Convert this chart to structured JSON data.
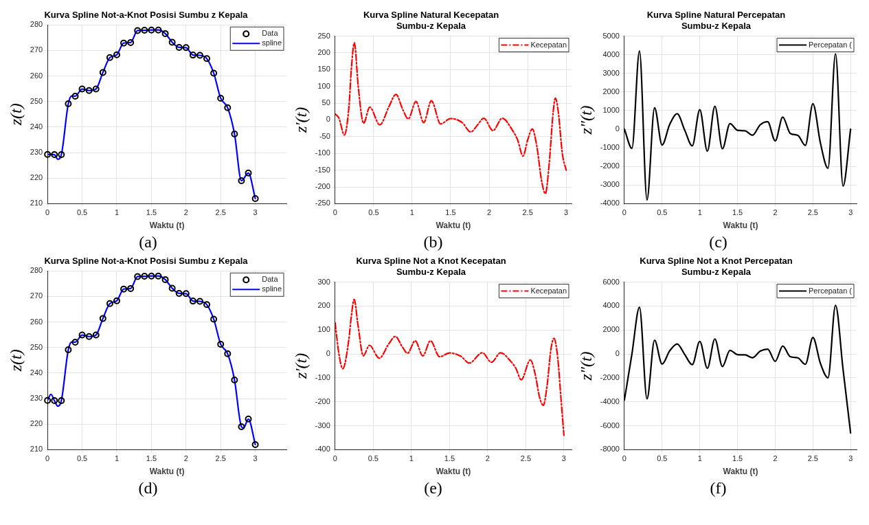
{
  "chart_data": [
    {
      "type": "line",
      "title": "Kurva Spline Not-a-Knot Posisi Sumbu z Kepala",
      "xlabel": "Waktu (t)",
      "ylabel": "z(t)",
      "annotations": [
        "(a)"
      ],
      "xlim": [
        0,
        3.45
      ],
      "xticks": [
        0,
        0.5,
        1,
        1.5,
        2,
        2.5,
        3
      ],
      "ylim": [
        210,
        280
      ],
      "yticks": [
        210,
        220,
        230,
        240,
        250,
        260,
        270,
        280
      ],
      "grid": true,
      "legend": "top right",
      "series": [
        {
          "name": "Data",
          "type": "scatter",
          "marker": "circle",
          "color": "#000000",
          "x": [
            0,
            0.1,
            0.2,
            0.3,
            0.4,
            0.5,
            0.6,
            0.7,
            0.8,
            0.9,
            1,
            1.1,
            1.2,
            1.3,
            1.4,
            1.5,
            1.6,
            1.7,
            1.8,
            1.9,
            2,
            2.1,
            2.2,
            2.3,
            2.4,
            2.5,
            2.6,
            2.7,
            2.8,
            2.9,
            3
          ],
          "values": [
            229.3,
            229.2,
            229.2,
            249.1,
            252.1,
            254.9,
            254.3,
            254.9,
            261.4,
            267.2,
            268.3,
            272.9,
            273.1,
            277.8,
            277.9,
            278.0,
            278.0,
            276.6,
            273.2,
            271.2,
            271.1,
            268.2,
            268.1,
            266.8,
            261.1,
            251.3,
            247.6,
            237.3,
            219.0,
            222.0,
            212.0
          ]
        },
        {
          "name": "spline",
          "type": "line",
          "color": "#0000ff",
          "x": [
            0,
            0.1,
            0.15,
            0.2,
            0.3,
            0.35,
            0.4,
            0.5,
            0.6,
            0.7,
            0.8,
            0.9,
            1,
            1.1,
            1.2,
            1.3,
            1.4,
            1.5,
            1.6,
            1.7,
            1.8,
            1.9,
            2,
            2.1,
            2.2,
            2.3,
            2.4,
            2.5,
            2.6,
            2.7,
            2.8,
            2.9,
            3
          ],
          "values": [
            229.3,
            229.2,
            227.4,
            229.2,
            249.1,
            252.2,
            252.1,
            254.9,
            254.3,
            254.9,
            261.4,
            267.2,
            268.3,
            272.9,
            273.1,
            277.8,
            277.9,
            278.0,
            278.0,
            276.6,
            273.2,
            271.2,
            271.1,
            268.2,
            268.1,
            266.8,
            261.1,
            251.3,
            247.6,
            237.3,
            219.0,
            222.0,
            212.0
          ]
        }
      ]
    },
    {
      "type": "line",
      "title": "Kurva Spline Natural Kecepatan\nSumbu-z Kepala",
      "xlabel": "Waktu (t)",
      "ylabel": "z′(t)",
      "annotations": [
        "(b)"
      ],
      "xlim": [
        0,
        3.07
      ],
      "xticks": [
        0,
        0.5,
        1,
        1.5,
        2,
        2.5,
        3
      ],
      "ylim": [
        -250,
        250
      ],
      "yticks": [
        -250,
        -200,
        -150,
        -100,
        -50,
        0,
        50,
        100,
        150,
        200,
        250
      ],
      "grid": true,
      "legend": "top right",
      "line_style": "dashed",
      "series": [
        {
          "name": "Kecepatan",
          "color": "#ff0000",
          "x": [
            0,
            0.05,
            0.12,
            0.18,
            0.21,
            0.25,
            0.3,
            0.37,
            0.45,
            0.58,
            0.7,
            0.79,
            0.88,
            0.95,
            1.05,
            1.15,
            1.25,
            1.37,
            1.5,
            1.65,
            1.76,
            1.85,
            1.93,
            2.05,
            2.17,
            2.3,
            2.37,
            2.44,
            2.5,
            2.56,
            2.62,
            2.68,
            2.73,
            2.78,
            2.83,
            2.86,
            2.9,
            2.95,
            3
          ],
          "values": [
            18,
            5,
            -45,
            40,
            150,
            230,
            100,
            -10,
            38,
            -15,
            40,
            76,
            30,
            3,
            55,
            -8,
            57,
            -12,
            4,
            -8,
            -36,
            -15,
            5,
            -32,
            5,
            -30,
            -60,
            -108,
            -60,
            -27,
            -80,
            -180,
            -220,
            -130,
            20,
            65,
            20,
            -100,
            -150
          ]
        }
      ]
    },
    {
      "type": "line",
      "title": "Kurva Spline Natural Percepatan\nSumbu-z Kepala",
      "xlabel": "Waktu (t)",
      "ylabel": "z″(t)",
      "annotations": [
        "(c)"
      ],
      "xlim": [
        0,
        3.08
      ],
      "xticks": [
        0,
        0.5,
        1,
        1.5,
        2,
        2.5,
        3
      ],
      "ylim": [
        -4000,
        5000
      ],
      "yticks": [
        -4000,
        -3000,
        -2000,
        -1000,
        0,
        1000,
        2000,
        3000,
        4000,
        5000
      ],
      "grid": true,
      "legend": "top right",
      "series": [
        {
          "name": "Percepatan (",
          "color": "#000000",
          "x": [
            0,
            0.1,
            0.2,
            0.3,
            0.4,
            0.5,
            0.6,
            0.7,
            0.8,
            0.9,
            1,
            1.1,
            1.2,
            1.3,
            1.4,
            1.5,
            1.6,
            1.7,
            1.8,
            1.9,
            2,
            2.1,
            2.2,
            2.3,
            2.4,
            2.5,
            2.6,
            2.7,
            2.8,
            2.9,
            3
          ],
          "values": [
            0,
            -1030,
            4200,
            -3800,
            1150,
            -850,
            250,
            830,
            -50,
            -900,
            1050,
            -1180,
            1230,
            -1050,
            300,
            -60,
            -90,
            -320,
            230,
            400,
            -630,
            650,
            -230,
            -330,
            -870,
            1370,
            -750,
            -2100,
            4050,
            -3050,
            0
          ]
        }
      ]
    },
    {
      "type": "line",
      "title": "Kurva Spline Not-a-Knot Posisi Sumbu z Kepala",
      "xlabel": "Waktu (t)",
      "ylabel": "z(t)",
      "annotations": [
        "(d)"
      ],
      "xlim": [
        0,
        3.45
      ],
      "xticks": [
        0,
        0.5,
        1,
        1.5,
        2,
        2.5,
        3
      ],
      "ylim": [
        210,
        280
      ],
      "yticks": [
        210,
        220,
        230,
        240,
        250,
        260,
        270,
        280
      ],
      "grid": true,
      "legend": "top right",
      "series": [
        {
          "name": "Data",
          "type": "scatter",
          "marker": "circle",
          "color": "#000000",
          "x": [
            0,
            0.1,
            0.2,
            0.3,
            0.4,
            0.5,
            0.6,
            0.7,
            0.8,
            0.9,
            1,
            1.1,
            1.2,
            1.3,
            1.4,
            1.5,
            1.6,
            1.7,
            1.8,
            1.9,
            2,
            2.1,
            2.2,
            2.3,
            2.4,
            2.5,
            2.6,
            2.7,
            2.8,
            2.9,
            3
          ],
          "values": [
            229.3,
            229.2,
            229.2,
            249.1,
            252.1,
            254.9,
            254.3,
            254.9,
            261.4,
            267.2,
            268.3,
            272.9,
            273.1,
            277.8,
            277.9,
            278.0,
            278.0,
            276.6,
            273.2,
            271.2,
            271.1,
            268.2,
            268.1,
            266.8,
            261.1,
            251.3,
            247.6,
            237.3,
            219.0,
            222.0,
            212.0
          ]
        },
        {
          "name": "spline",
          "type": "line",
          "color": "#0000ff",
          "x": [
            0,
            0.05,
            0.1,
            0.15,
            0.2,
            0.3,
            0.35,
            0.4,
            0.5,
            0.6,
            0.7,
            0.8,
            0.9,
            1,
            1.1,
            1.2,
            1.3,
            1.4,
            1.5,
            1.6,
            1.7,
            1.8,
            1.9,
            2,
            2.1,
            2.2,
            2.3,
            2.4,
            2.5,
            2.6,
            2.7,
            2.8,
            2.83,
            2.9,
            3
          ],
          "values": [
            229.3,
            231.7,
            229.2,
            227.0,
            229.2,
            249.1,
            252.2,
            252.1,
            254.9,
            254.3,
            254.9,
            261.4,
            267.2,
            268.3,
            272.9,
            273.1,
            277.8,
            277.9,
            278.0,
            278.0,
            276.6,
            273.2,
            271.2,
            271.1,
            268.2,
            268.1,
            266.8,
            261.1,
            251.3,
            247.6,
            237.3,
            219.0,
            218.5,
            222.0,
            212.0
          ]
        }
      ]
    },
    {
      "type": "line",
      "title": "Kurva Spline Not a Knot Kecepatan\nSumbu-z Kepala",
      "xlabel": "Waktu (t)",
      "ylabel": "z′(t)",
      "annotations": [
        "(e)"
      ],
      "xlim": [
        0,
        3.1
      ],
      "xticks": [
        0,
        0.5,
        1,
        1.5,
        2,
        2.5,
        3
      ],
      "ylim": [
        -400,
        300
      ],
      "yticks": [
        -400,
        -300,
        -200,
        -100,
        0,
        100,
        200,
        300
      ],
      "grid": true,
      "legend": "top right",
      "line_style": "dashed",
      "series": [
        {
          "name": "Kecepatan",
          "color": "#ff0000",
          "x": [
            0,
            0.05,
            0.1,
            0.18,
            0.21,
            0.25,
            0.3,
            0.37,
            0.45,
            0.58,
            0.7,
            0.79,
            0.88,
            0.95,
            1.05,
            1.15,
            1.25,
            1.37,
            1.5,
            1.65,
            1.76,
            1.93,
            2.05,
            2.17,
            2.3,
            2.37,
            2.44,
            2.56,
            2.62,
            2.68,
            2.73,
            2.78,
            2.83,
            2.87,
            2.92,
            2.96,
            3
          ],
          "values": [
            130,
            0,
            -62,
            60,
            150,
            228,
            120,
            -8,
            36,
            -18,
            40,
            73,
            30,
            3,
            55,
            -8,
            55,
            -12,
            4,
            -10,
            -38,
            5,
            -35,
            5,
            -30,
            -60,
            -108,
            -25,
            -80,
            -180,
            -215,
            -130,
            20,
            65,
            -20,
            -180,
            -340
          ]
        }
      ]
    },
    {
      "type": "line",
      "title": "Kurva Spline Not a Knot Percepatan\nSumbu-z Kepala",
      "xlabel": "Waktu (t)",
      "ylabel": "z″(t)",
      "annotations": [
        "(f)"
      ],
      "xlim": [
        0,
        3.08
      ],
      "xticks": [
        0,
        0.5,
        1,
        1.5,
        2,
        2.5,
        3
      ],
      "ylim": [
        -8000,
        6000
      ],
      "yticks": [
        -8000,
        -6000,
        -4000,
        -2000,
        0,
        2000,
        4000,
        6000
      ],
      "grid": true,
      "legend": "top right",
      "series": [
        {
          "name": "Percepatan (",
          "color": "#000000",
          "x": [
            0,
            0.1,
            0.2,
            0.3,
            0.4,
            0.5,
            0.6,
            0.7,
            0.8,
            0.9,
            1,
            1.1,
            1.2,
            1.3,
            1.4,
            1.5,
            1.6,
            1.7,
            1.8,
            1.9,
            2,
            2.1,
            2.2,
            2.3,
            2.4,
            2.5,
            2.6,
            2.7,
            2.8,
            2.9,
            3
          ],
          "values": [
            -3850,
            0,
            3900,
            -3750,
            1150,
            -850,
            250,
            830,
            -50,
            -900,
            1050,
            -1200,
            1250,
            -1050,
            300,
            -60,
            -80,
            -320,
            230,
            400,
            -620,
            650,
            -230,
            -330,
            -870,
            1370,
            -800,
            -2000,
            4050,
            -1300,
            -6600
          ]
        }
      ]
    }
  ]
}
